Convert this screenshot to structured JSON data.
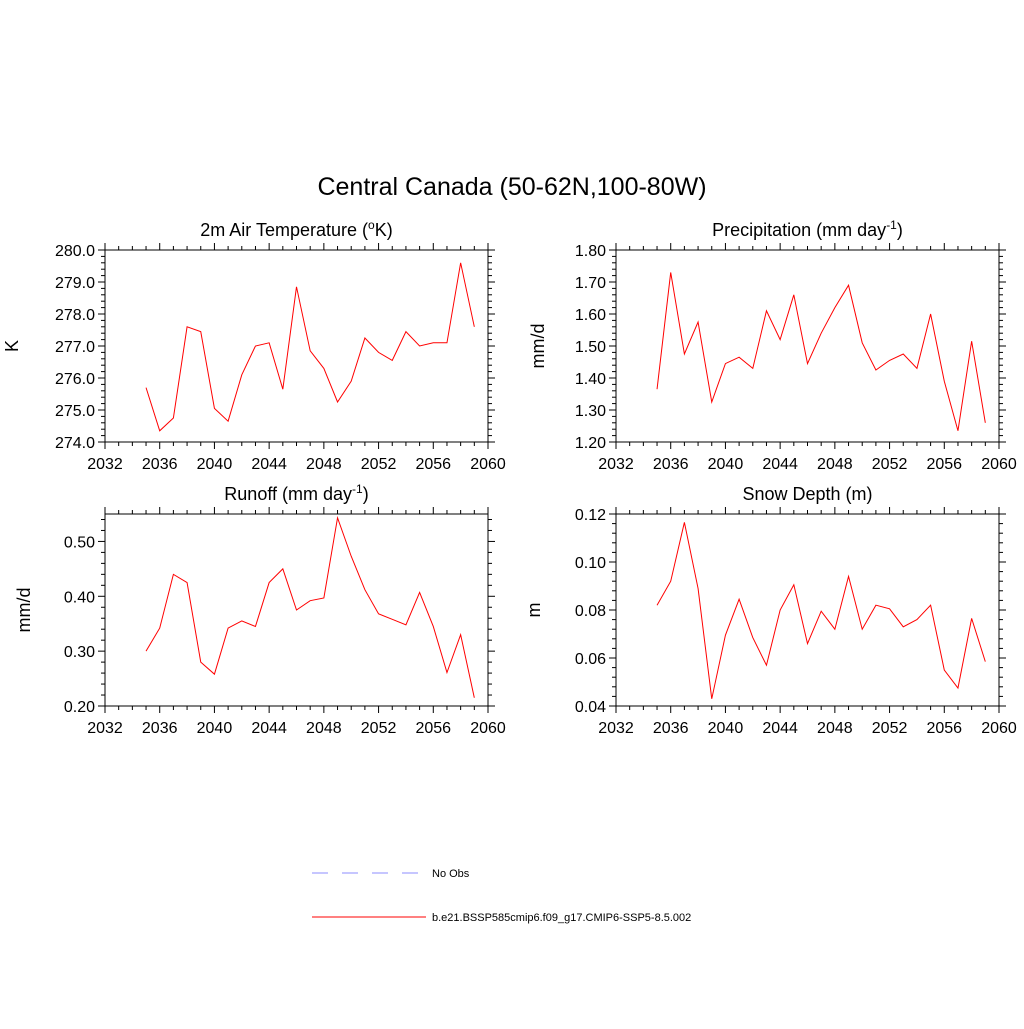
{
  "title": "Central Canada (50-62N,100-80W)",
  "colors": {
    "model": "#ff0000",
    "obs": "#8c8cff"
  },
  "legend": [
    {
      "label": "No Obs",
      "style": "dashed",
      "color": "#8c8cff"
    },
    {
      "label": "b.e21.BSSP585cmip6.f09_g17.CMIP6-SSP5-8.5.002",
      "style": "solid",
      "color": "#ff0000"
    }
  ],
  "chart_data": [
    {
      "type": "line",
      "title": "2m Air Temperature",
      "title_unit_pre": "(",
      "title_sup": "o",
      "title_unit_post": "K)",
      "ylabel": "K",
      "xlim": [
        2032,
        2060
      ],
      "ylim": [
        274.0,
        280.0
      ],
      "x_ticks": [
        2032,
        2036,
        2040,
        2044,
        2048,
        2052,
        2056,
        2060
      ],
      "y_ticks": [
        274.0,
        275.0,
        276.0,
        277.0,
        278.0,
        279.0,
        280.0
      ],
      "y_tick_labels": [
        "274.0",
        "275.0",
        "276.0",
        "277.0",
        "278.0",
        "279.0",
        "280.0"
      ],
      "series": [
        {
          "x": [
            2035,
            2036,
            2037,
            2038,
            2039,
            2040,
            2041,
            2042,
            2043,
            2044,
            2045,
            2046,
            2047,
            2048,
            2049,
            2050,
            2051,
            2052,
            2053,
            2054,
            2055,
            2056,
            2057,
            2058,
            2059
          ],
          "values": [
            275.7,
            274.35,
            274.75,
            277.6,
            277.45,
            275.05,
            274.65,
            276.1,
            277.0,
            277.1,
            275.65,
            278.85,
            276.85,
            276.3,
            275.25,
            275.9,
            277.25,
            276.8,
            276.55,
            277.45,
            277.0,
            277.1,
            277.1,
            279.6,
            277.6
          ]
        }
      ]
    },
    {
      "type": "line",
      "title": "Precipitation",
      "title_unit_pre": "(mm day",
      "title_sup": "-1",
      "title_unit_post": ")",
      "ylabel": "mm/d",
      "xlim": [
        2032,
        2060
      ],
      "ylim": [
        1.2,
        1.8
      ],
      "x_ticks": [
        2032,
        2036,
        2040,
        2044,
        2048,
        2052,
        2056,
        2060
      ],
      "y_ticks": [
        1.2,
        1.3,
        1.4,
        1.5,
        1.6,
        1.7,
        1.8
      ],
      "y_tick_labels": [
        "1.20",
        "1.30",
        "1.40",
        "1.50",
        "1.60",
        "1.70",
        "1.80"
      ],
      "series": [
        {
          "x": [
            2035,
            2036,
            2037,
            2038,
            2039,
            2040,
            2041,
            2042,
            2043,
            2044,
            2045,
            2046,
            2047,
            2048,
            2049,
            2050,
            2051,
            2052,
            2053,
            2054,
            2055,
            2056,
            2057,
            2058,
            2059
          ],
          "values": [
            1.365,
            1.73,
            1.475,
            1.575,
            1.325,
            1.445,
            1.465,
            1.43,
            1.61,
            1.52,
            1.66,
            1.445,
            1.54,
            1.62,
            1.69,
            1.51,
            1.425,
            1.455,
            1.475,
            1.43,
            1.6,
            1.39,
            1.235,
            1.515,
            1.26
          ]
        }
      ]
    },
    {
      "type": "line",
      "title": "Runoff",
      "title_unit_pre": "(mm day",
      "title_sup": "-1",
      "title_unit_post": ")",
      "ylabel": "mm/d",
      "xlim": [
        2032,
        2060
      ],
      "ylim": [
        0.2,
        0.55
      ],
      "x_ticks": [
        2032,
        2036,
        2040,
        2044,
        2048,
        2052,
        2056,
        2060
      ],
      "y_ticks": [
        0.2,
        0.3,
        0.4,
        0.5
      ],
      "y_tick_labels": [
        "0.20",
        "0.30",
        "0.40",
        "0.50"
      ],
      "series": [
        {
          "x": [
            2035,
            2036,
            2037,
            2038,
            2039,
            2040,
            2041,
            2042,
            2043,
            2044,
            2045,
            2046,
            2047,
            2048,
            2049,
            2050,
            2051,
            2052,
            2053,
            2054,
            2055,
            2056,
            2057,
            2058,
            2059
          ],
          "values": [
            0.3,
            0.342,
            0.44,
            0.425,
            0.28,
            0.258,
            0.342,
            0.355,
            0.345,
            0.425,
            0.45,
            0.375,
            0.392,
            0.397,
            0.543,
            0.473,
            0.412,
            0.368,
            0.358,
            0.348,
            0.407,
            0.345,
            0.261,
            0.33,
            0.215
          ]
        }
      ]
    },
    {
      "type": "line",
      "title": "Snow Depth (m)",
      "title_unit_pre": "",
      "title_sup": "",
      "title_unit_post": "",
      "ylabel": "m",
      "xlim": [
        2032,
        2060
      ],
      "ylim": [
        0.04,
        0.12
      ],
      "x_ticks": [
        2032,
        2036,
        2040,
        2044,
        2048,
        2052,
        2056,
        2060
      ],
      "y_ticks": [
        0.04,
        0.06,
        0.08,
        0.1,
        0.12
      ],
      "y_tick_labels": [
        "0.04",
        "0.06",
        "0.08",
        "0.10",
        "0.12"
      ],
      "series": [
        {
          "x": [
            2035,
            2036,
            2037,
            2038,
            2039,
            2040,
            2041,
            2042,
            2043,
            2044,
            2045,
            2046,
            2047,
            2048,
            2049,
            2050,
            2051,
            2052,
            2053,
            2054,
            2055,
            2056,
            2057,
            2058,
            2059
          ],
          "values": [
            0.082,
            0.092,
            0.1165,
            0.089,
            0.043,
            0.0695,
            0.0845,
            0.0685,
            0.057,
            0.08,
            0.0905,
            0.066,
            0.0795,
            0.072,
            0.094,
            0.072,
            0.082,
            0.0805,
            0.073,
            0.076,
            0.082,
            0.055,
            0.0475,
            0.0765,
            0.0585
          ]
        }
      ]
    }
  ]
}
